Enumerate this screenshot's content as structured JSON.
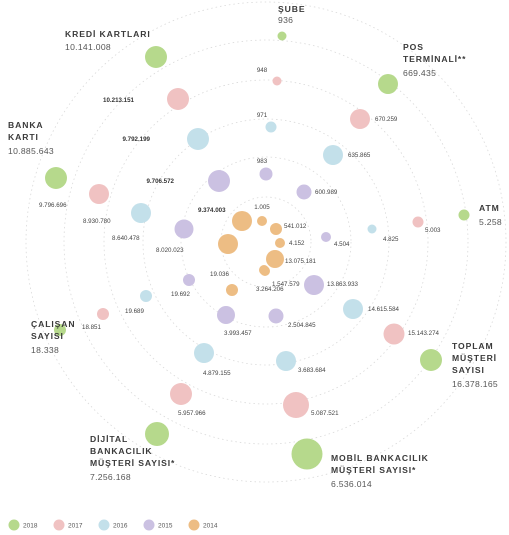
{
  "chart_data": {
    "type": "scatter",
    "title": "",
    "legend_position": "bottom-left",
    "years": [
      "2018",
      "2017",
      "2016",
      "2015",
      "2014"
    ],
    "colors": {
      "2018": "#b6d98c",
      "2017": "#f0c2c2",
      "2016": "#c3e0ea",
      "2015": "#cbc1e2",
      "2014": "#edbd84"
    },
    "grid": "concentric circles",
    "categories": [
      {
        "id": "sube",
        "name": [
          "ŞUBE"
        ],
        "value_2018": "936",
        "values": {
          "2017": "948",
          "2016": "971",
          "2015": "983",
          "2014": "1.005"
        }
      },
      {
        "id": "pos",
        "name": [
          "POS",
          "TERMİNALİ**"
        ],
        "value_2018": "669.435",
        "values": {
          "2017": "670.259",
          "2016": "635.865",
          "2015": "600.989",
          "2014": "541.012"
        }
      },
      {
        "id": "atm",
        "name": [
          "ATM"
        ],
        "value_2018": "5.258",
        "values": {
          "2017": "5.003",
          "2016": "4.825",
          "2015": "4.504",
          "2014": "4.152"
        }
      },
      {
        "id": "toplam",
        "name": [
          "TOPLAM",
          "MÜŞTERİ",
          "SAYISI"
        ],
        "value_2018": "16.378.165",
        "values": {
          "2017": "15.143.274",
          "2016": "14.615.584",
          "2015": "13.863.933",
          "2014": "13.075.181"
        }
      },
      {
        "id": "mobil",
        "name": [
          "MOBİL BANKACILIK",
          "MÜŞTERİ SAYISI*"
        ],
        "value_2018": "6.536.014",
        "values": {
          "2017": "5.087.521",
          "2016": "3.683.684",
          "2015": "2.504.845",
          "2014": "1.547.579"
        }
      },
      {
        "id": "dijital",
        "name": [
          "DİJİTAL",
          "BANKACILIK",
          "MÜŞTERİ SAYISI*"
        ],
        "value_2018": "7.256.168",
        "values": {
          "2017": "5.957.966",
          "2016": "4.879.155",
          "2015": "3.993.457",
          "2014": "3.264.206"
        }
      },
      {
        "id": "calisan",
        "name": [
          "ÇALIŞAN",
          "SAYISI"
        ],
        "value_2018": "18.338",
        "values": {
          "2017": "18.851",
          "2016": "19.689",
          "2015": "19.692",
          "2014": "19.036"
        }
      },
      {
        "id": "banka",
        "name": [
          "BANKA",
          "KARTI"
        ],
        "value_2018": "10.885.643",
        "values": {
          "2017": "9.796.696",
          "2016": "8.930.780",
          "2015": "8.640.478",
          "2014": "8.020.023"
        }
      },
      {
        "id": "kredi",
        "name": [
          "KREDİ KARTLARI"
        ],
        "value_2018": "10.141.008",
        "values": {
          "2017": "10.213.151",
          "2016": "9.792.199",
          "2015": "9.706.572",
          "2014": "9.374.003"
        }
      }
    ]
  }
}
